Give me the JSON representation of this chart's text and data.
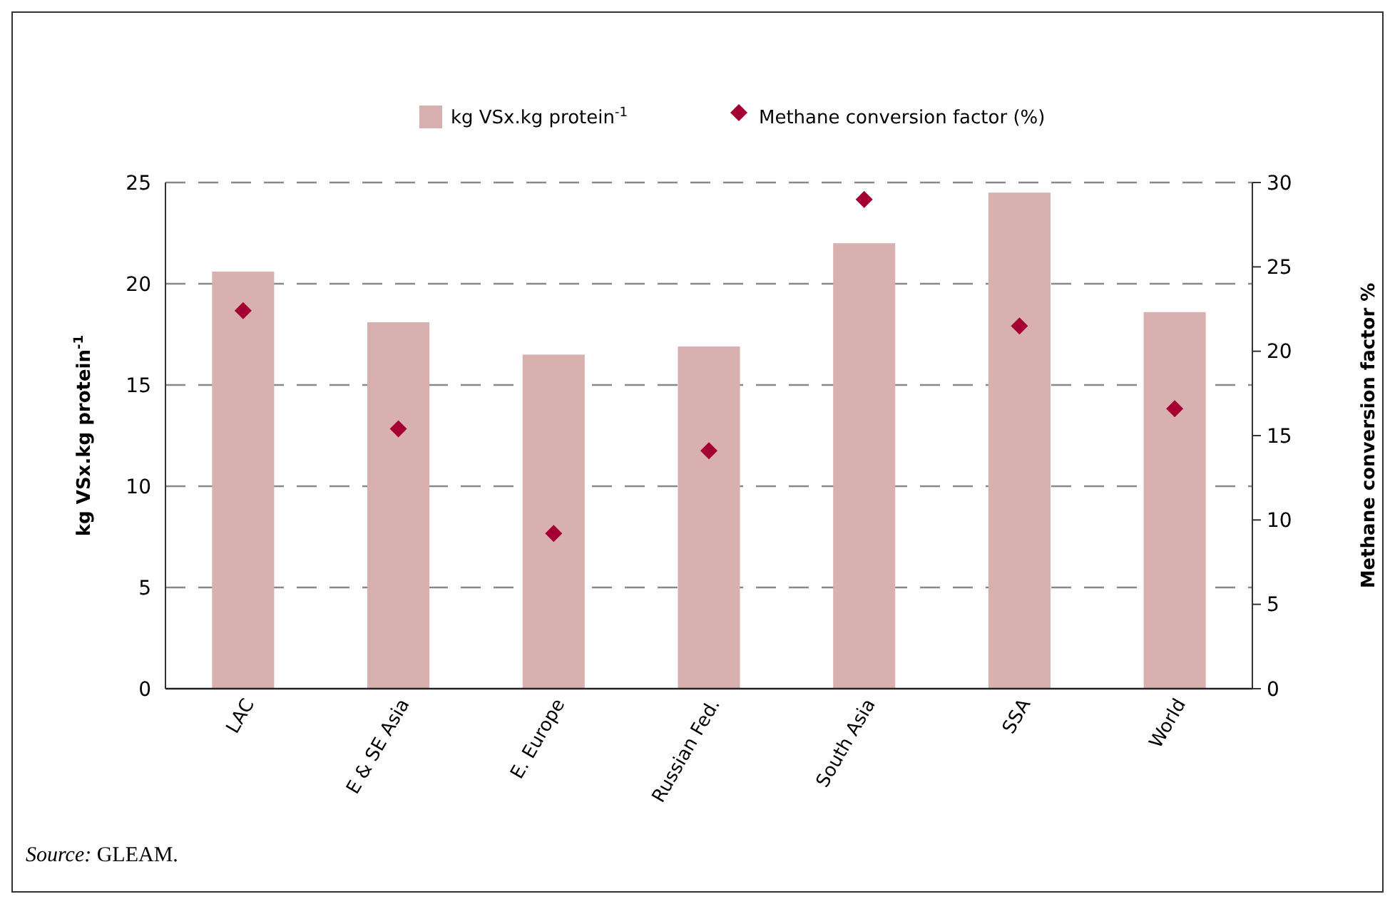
{
  "chart_data": {
    "type": "bar",
    "categories": [
      "LAC",
      "E & SE Asia",
      "E. Europe",
      "Russian Fed.",
      "South Asia",
      "SSA",
      "World"
    ],
    "ylabel": "kg VSx.kg protein$^{-1}$",
    "y2label": "Methane conversion factor %",
    "series": [
      {
        "name": "kg VSx.kg protein$^{-1}$",
        "color": "#d9b0b0",
        "values": [
          20.6,
          18.1,
          16.5,
          16.9,
          22.0,
          24.5,
          18.6
        ]
      },
      {
        "name": "Methane conversion factor (%)",
        "type": "scatter",
        "axis": "y2",
        "marker": "diamond",
        "color": "#a50034",
        "values": [
          22.4,
          15.4,
          9.2,
          14.1,
          29.0,
          21.5,
          16.6
        ]
      }
    ],
    "ylim": [
      0,
      25
    ],
    "yticks": [
      0,
      5,
      10,
      15,
      20,
      25
    ],
    "y2lim": [
      0,
      30
    ],
    "y2ticks": [
      0,
      5,
      10,
      15,
      20,
      25,
      30
    ],
    "grid": "y",
    "legend": "top",
    "annotations": [
      "Source: GLEAM."
    ]
  }
}
